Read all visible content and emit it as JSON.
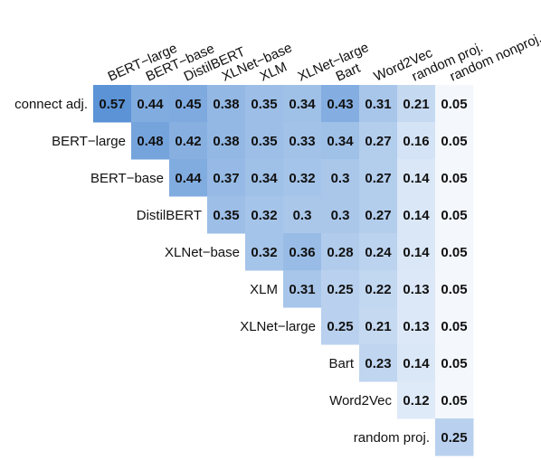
{
  "chart_data": {
    "type": "heatmap",
    "title": "",
    "columns": [
      "BERT−large",
      "BERT−base",
      "DistilBERT",
      "XLNet−base",
      "XLM",
      "XLNet−large",
      "Bart",
      "Word2Vec",
      "random proj.",
      "random nonproj."
    ],
    "rows": [
      "connect adj.",
      "BERT−large",
      "BERT−base",
      "DistilBERT",
      "XLNet−base",
      "XLM",
      "XLNet−large",
      "Bart",
      "Word2Vec",
      "random proj."
    ],
    "values": [
      [
        0.57,
        0.44,
        0.45,
        0.38,
        0.35,
        0.34,
        0.43,
        0.31,
        0.21,
        0.05
      ],
      [
        null,
        0.48,
        0.42,
        0.38,
        0.35,
        0.33,
        0.34,
        0.27,
        0.16,
        0.05
      ],
      [
        null,
        null,
        0.44,
        0.37,
        0.34,
        0.32,
        0.3,
        0.27,
        0.14,
        0.05
      ],
      [
        null,
        null,
        null,
        0.35,
        0.32,
        0.3,
        0.3,
        0.27,
        0.14,
        0.05
      ],
      [
        null,
        null,
        null,
        null,
        0.32,
        0.36,
        0.28,
        0.24,
        0.14,
        0.05
      ],
      [
        null,
        null,
        null,
        null,
        null,
        0.31,
        0.25,
        0.22,
        0.13,
        0.05
      ],
      [
        null,
        null,
        null,
        null,
        null,
        null,
        0.25,
        0.21,
        0.13,
        0.05
      ],
      [
        null,
        null,
        null,
        null,
        null,
        null,
        null,
        0.23,
        0.14,
        0.05
      ],
      [
        null,
        null,
        null,
        null,
        null,
        null,
        null,
        null,
        0.12,
        0.05
      ],
      [
        null,
        null,
        null,
        null,
        null,
        null,
        null,
        null,
        null,
        0.25
      ]
    ],
    "value_range": [
      0.05,
      0.57
    ],
    "colors": {
      "low": "#f4f8fd",
      "high": "#5b93d6",
      "text": "#111111"
    },
    "grid": false,
    "legend": "none"
  }
}
